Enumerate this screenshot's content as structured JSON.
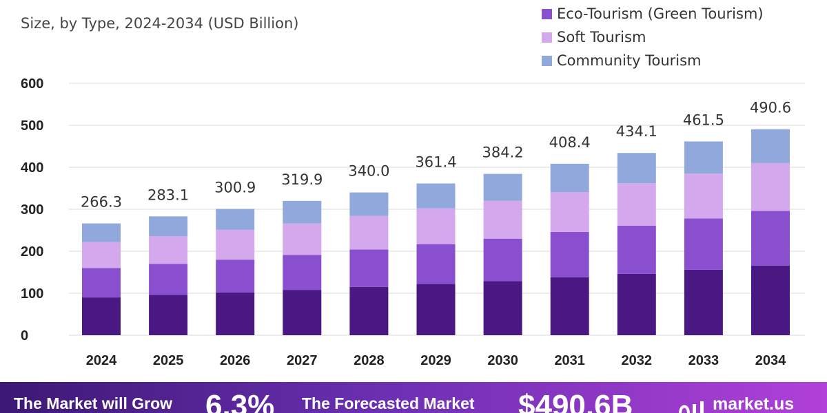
{
  "subtitle": "Size, by Type, 2024-2034 (USD Billion)",
  "colors": {
    "eco": "#8a4fcf",
    "soft": "#d4a8ec",
    "community": "#91a8dc",
    "base": "#4a1882",
    "grid": "#d9d9d9"
  },
  "chart_data": {
    "type": "bar",
    "stacked": true,
    "title": "",
    "subtitle": "Size, by Type, 2024-2034 (USD Billion)",
    "xlabel": "",
    "ylabel": "",
    "ylim": [
      0,
      600
    ],
    "yticks": [
      0,
      100,
      200,
      300,
      400,
      500,
      600
    ],
    "legend_position": "top-right",
    "categories": [
      "2024",
      "2025",
      "2026",
      "2027",
      "2028",
      "2029",
      "2030",
      "2031",
      "2032",
      "2033",
      "2034"
    ],
    "series": [
      {
        "legend": "",
        "color": "#4a1882",
        "values": [
          90,
          96,
          102,
          108,
          115,
          122,
          129,
          138,
          146,
          156,
          166
        ]
      },
      {
        "legend": "Eco-Tourism (Green Tourism)",
        "color": "#8a4fcf",
        "values": [
          70,
          74,
          78,
          83,
          89,
          95,
          101,
          108,
          115,
          122,
          130
        ]
      },
      {
        "legend": "Soft Tourism",
        "color": "#d4a8ec",
        "values": [
          62,
          66,
          71,
          75,
          80,
          85,
          90,
          95,
          101,
          107,
          114
        ]
      },
      {
        "legend": "Community Tourism",
        "color": "#91a8dc",
        "values": [
          44.3,
          47.1,
          49.9,
          53.9,
          56.0,
          59.4,
          64.2,
          67.4,
          72.1,
          76.5,
          80.6
        ]
      }
    ],
    "totals": [
      266.3,
      283.1,
      300.9,
      319.9,
      340.0,
      361.4,
      384.2,
      408.4,
      434.1,
      461.5,
      490.6
    ],
    "total_labels": [
      "266.3",
      "283.1",
      "300.9",
      "319.9",
      "340.0",
      "361.4",
      "384.2",
      "408.4",
      "434.1",
      "461.5",
      "490.6"
    ]
  },
  "footer": {
    "grow_label": "The Market will Grow",
    "grow_value": "6.3%",
    "forecast_label": "The Forecasted Market",
    "forecast_value": "$490.6B",
    "brand": "market.us",
    "brand_icon": "market-us-logo-icon"
  }
}
